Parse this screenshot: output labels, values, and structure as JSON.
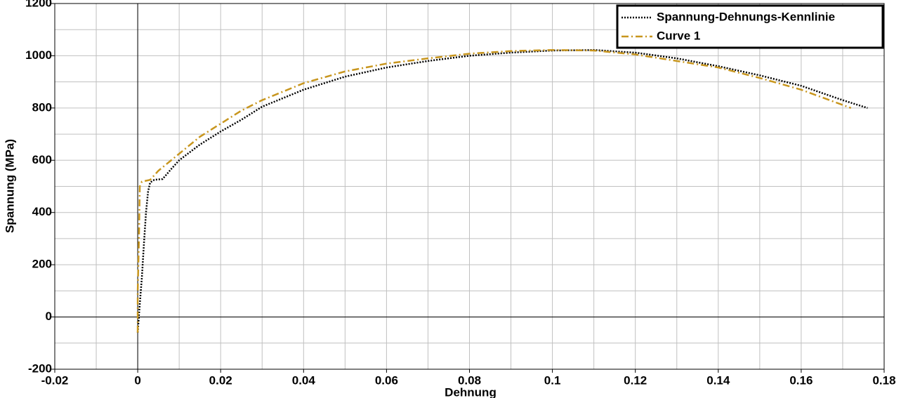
{
  "chart_data": {
    "type": "line",
    "xlabel": "Dehnung",
    "ylabel": "Spannung (MPa)",
    "xlim": [
      -0.02,
      0.18
    ],
    "ylim": [
      -200,
      1200
    ],
    "xticks": [
      -0.02,
      0,
      0.02,
      0.04,
      0.06,
      0.08,
      0.1,
      0.12,
      0.14,
      0.16,
      0.18
    ],
    "yticks": [
      -200,
      0,
      200,
      400,
      600,
      800,
      1000,
      1200
    ],
    "grid": true,
    "legend": "upper right",
    "series": [
      {
        "name": "Spannung-Dehnungs-Kennlinie",
        "color": "#000000",
        "style": "dotted",
        "x": [
          0,
          0.0005,
          0.001,
          0.0015,
          0.002,
          0.0025,
          0.003,
          0.004,
          0.006,
          0.008,
          0.01,
          0.015,
          0.02,
          0.025,
          0.03,
          0.04,
          0.05,
          0.06,
          0.07,
          0.08,
          0.09,
          0.1,
          0.11,
          0.12,
          0.13,
          0.14,
          0.15,
          0.16,
          0.17,
          0.176
        ],
        "values": [
          -60,
          50,
          150,
          280,
          400,
          480,
          515,
          525,
          528,
          565,
          600,
          660,
          710,
          755,
          805,
          870,
          920,
          955,
          980,
          1000,
          1012,
          1020,
          1022,
          1012,
          990,
          960,
          925,
          885,
          830,
          800
        ]
      },
      {
        "name": "Curve 1",
        "color": "#c8961e",
        "style": "dashdot",
        "x": [
          0,
          0,
          0.0003,
          0.0005,
          0.001,
          0.003,
          0.005,
          0.01,
          0.015,
          0.02,
          0.025,
          0.03,
          0.04,
          0.05,
          0.06,
          0.07,
          0.08,
          0.09,
          0.1,
          0.11,
          0.12,
          0.13,
          0.14,
          0.15,
          0.16,
          0.172
        ],
        "values": [
          -60,
          100,
          300,
          500,
          518,
          525,
          560,
          625,
          690,
          740,
          790,
          830,
          895,
          940,
          970,
          990,
          1008,
          1018,
          1022,
          1020,
          1005,
          980,
          955,
          915,
          870,
          800
        ]
      }
    ]
  }
}
